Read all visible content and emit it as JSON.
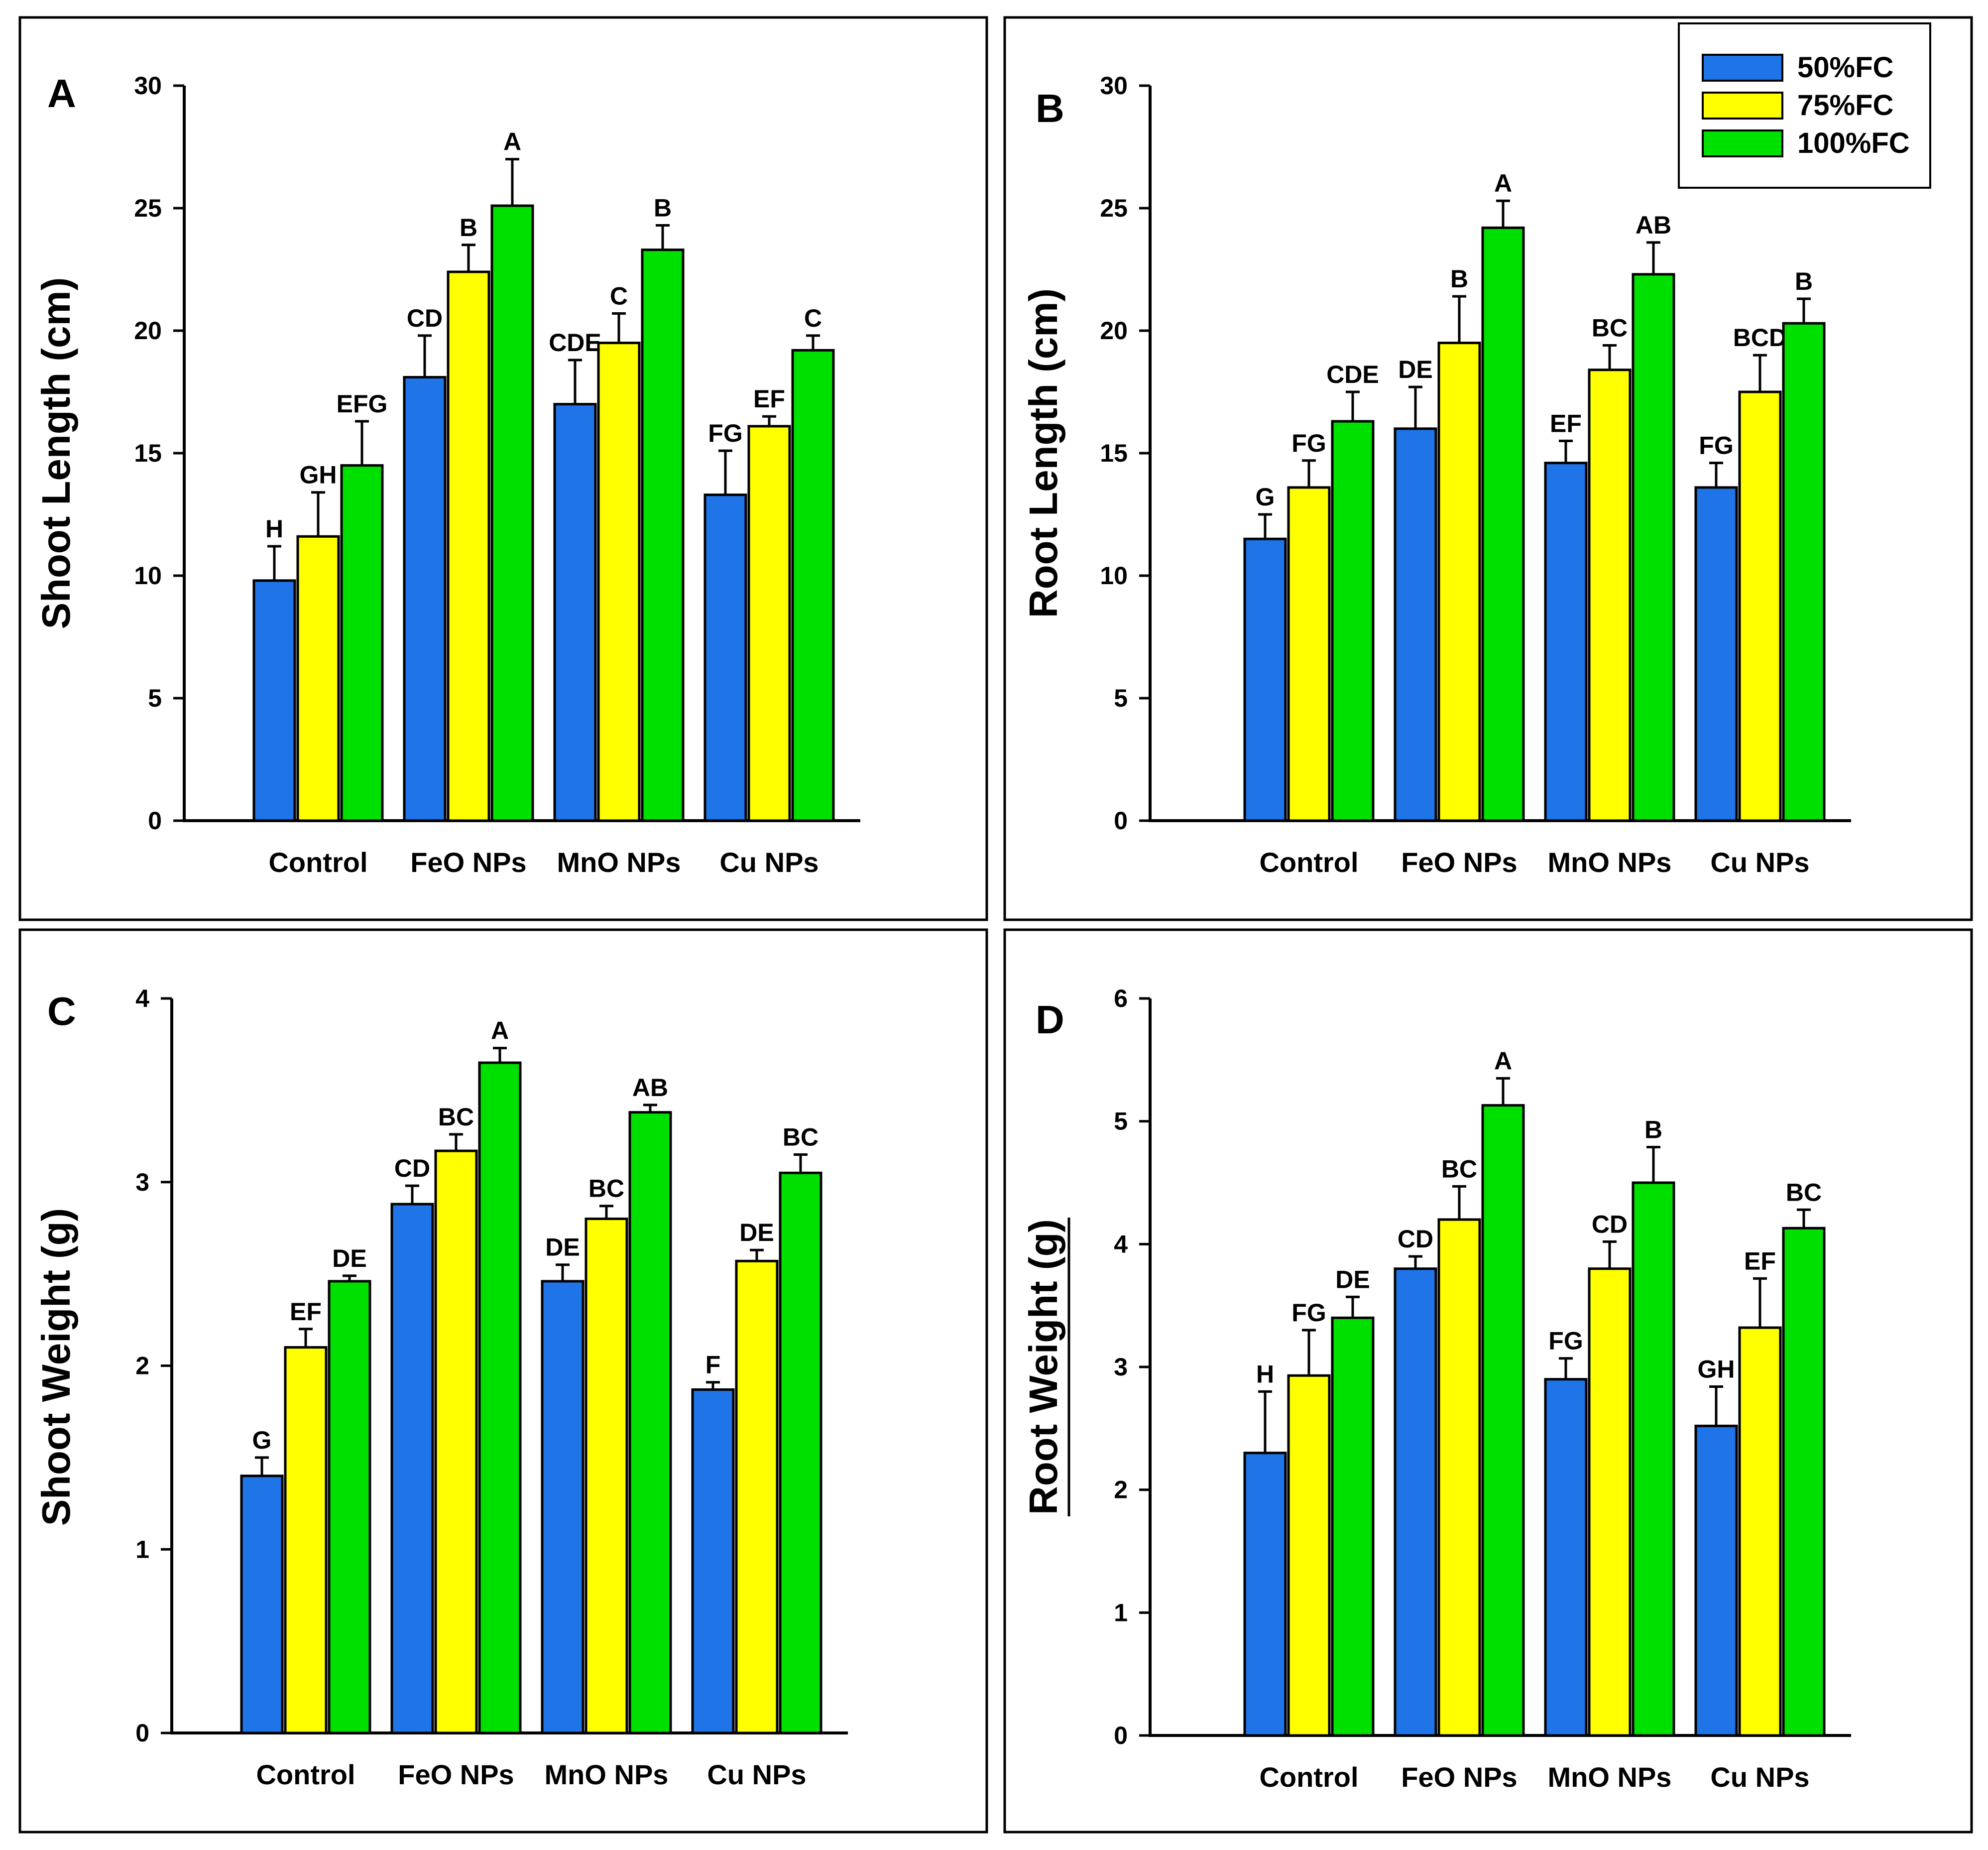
{
  "legend": [
    {
      "name": "50%FC",
      "color": "#1f74e8"
    },
    {
      "name": "75%FC",
      "color": "#ffff00"
    },
    {
      "name": "100%FC",
      "color": "#00e000"
    }
  ],
  "chart_data": [
    {
      "type": "bar",
      "panel": "A",
      "ylabel": "Shoot Length (cm)",
      "xlabel": "",
      "ylim": [
        0,
        30
      ],
      "yticks": [
        0,
        5,
        10,
        15,
        20,
        25,
        30
      ],
      "grid": false,
      "categories": [
        "Control",
        "FeO NPs",
        "MnO NPs",
        "Cu NPs"
      ],
      "series": [
        {
          "name": "50%FC",
          "values": [
            9.8,
            18.1,
            17.0,
            13.3
          ],
          "errors": [
            1.4,
            1.7,
            1.8,
            1.8
          ],
          "labels": [
            "H",
            "CD",
            "CDE",
            "FG"
          ]
        },
        {
          "name": "75%FC",
          "values": [
            11.6,
            22.4,
            19.5,
            16.1
          ],
          "errors": [
            1.8,
            1.1,
            1.2,
            0.4
          ],
          "labels": [
            "GH",
            "B",
            "C",
            "EF"
          ]
        },
        {
          "name": "100%FC",
          "values": [
            14.5,
            25.1,
            23.3,
            19.2
          ],
          "errors": [
            1.8,
            1.9,
            1.0,
            0.6
          ],
          "labels": [
            "EFG",
            "A",
            "B",
            "C"
          ]
        }
      ]
    },
    {
      "type": "bar",
      "panel": "B",
      "ylabel": "Root Length (cm)",
      "xlabel": "",
      "ylim": [
        0,
        30
      ],
      "yticks": [
        0,
        5,
        10,
        15,
        20,
        25,
        30
      ],
      "grid": false,
      "legend_position": "top-right",
      "categories": [
        "Control",
        "FeO NPs",
        "MnO NPs",
        "Cu NPs"
      ],
      "series": [
        {
          "name": "50%FC",
          "values": [
            11.5,
            16.0,
            14.6,
            13.6
          ],
          "errors": [
            1.0,
            1.7,
            0.9,
            1.0
          ],
          "labels": [
            "G",
            "DE",
            "EF",
            "FG"
          ]
        },
        {
          "name": "75%FC",
          "values": [
            13.6,
            19.5,
            18.4,
            17.5
          ],
          "errors": [
            1.1,
            1.9,
            1.0,
            1.5
          ],
          "labels": [
            "FG",
            "B",
            "BC",
            "BCD"
          ]
        },
        {
          "name": "100%FC",
          "values": [
            16.3,
            24.2,
            22.3,
            20.3
          ],
          "errors": [
            1.2,
            1.1,
            1.3,
            1.0
          ],
          "labels": [
            "CDE",
            "A",
            "AB",
            "B"
          ]
        }
      ]
    },
    {
      "type": "bar",
      "panel": "C",
      "ylabel": "Shoot Weight (g)",
      "xlabel": "",
      "ylim": [
        0,
        4
      ],
      "yticks": [
        0,
        1,
        2,
        3,
        4
      ],
      "grid": false,
      "categories": [
        "Control",
        "FeO NPs",
        "MnO NPs",
        "Cu NPs"
      ],
      "series": [
        {
          "name": "50%FC",
          "values": [
            1.4,
            2.88,
            2.46,
            1.87
          ],
          "errors": [
            0.1,
            0.1,
            0.09,
            0.04
          ],
          "labels": [
            "G",
            "CD",
            "DE",
            "F"
          ]
        },
        {
          "name": "75%FC",
          "values": [
            2.1,
            3.17,
            2.8,
            2.57
          ],
          "errors": [
            0.1,
            0.09,
            0.07,
            0.06
          ],
          "labels": [
            "EF",
            "BC",
            "BC",
            "DE"
          ]
        },
        {
          "name": "100%FC",
          "values": [
            2.46,
            3.65,
            3.38,
            3.05
          ],
          "errors": [
            0.03,
            0.08,
            0.04,
            0.1
          ],
          "labels": [
            "DE",
            "A",
            "AB",
            "BC"
          ]
        }
      ]
    },
    {
      "type": "bar",
      "panel": "D",
      "ylabel": "Root Weight (g)",
      "xlabel": "",
      "ylim": [
        0,
        6
      ],
      "yticks": [
        0,
        1,
        2,
        3,
        4,
        5,
        6
      ],
      "grid": false,
      "categories": [
        "Control",
        "FeO NPs",
        "MnO NPs",
        "Cu NPs"
      ],
      "series": [
        {
          "name": "50%FC",
          "values": [
            2.3,
            3.8,
            2.9,
            2.52
          ],
          "errors": [
            0.5,
            0.1,
            0.17,
            0.32
          ],
          "labels": [
            "H",
            "CD",
            "FG",
            "GH"
          ]
        },
        {
          "name": "75%FC",
          "values": [
            2.93,
            4.2,
            3.8,
            3.32
          ],
          "errors": [
            0.37,
            0.27,
            0.22,
            0.4
          ],
          "labels": [
            "FG",
            "BC",
            "CD",
            "EF"
          ]
        },
        {
          "name": "100%FC",
          "values": [
            3.4,
            5.13,
            4.5,
            4.13
          ],
          "errors": [
            0.17,
            0.22,
            0.29,
            0.15
          ],
          "labels": [
            "DE",
            "A",
            "B",
            "BC"
          ]
        }
      ]
    }
  ]
}
